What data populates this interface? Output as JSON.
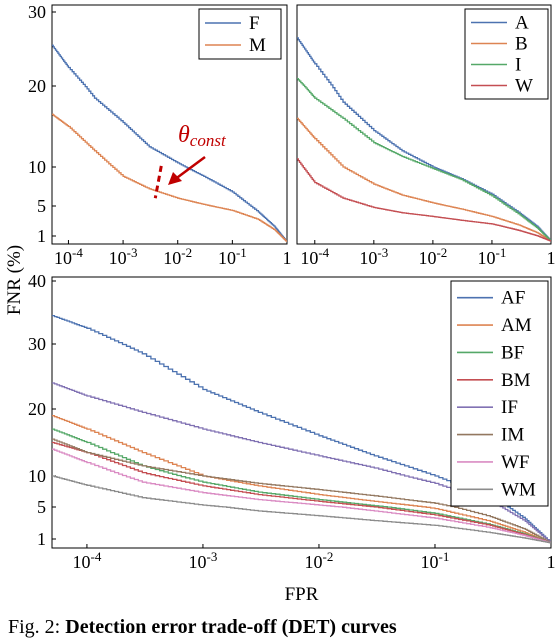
{
  "y_axis_label": "FNR (%)",
  "caption": {
    "prefix": "Fig. 2: ",
    "bold": "Detection error trade-off (DET) curves"
  },
  "colors": {
    "F": "#4c72b0",
    "M": "#dd8452",
    "A": "#4c72b0",
    "B": "#dd8452",
    "I": "#55a868",
    "W": "#c44e52",
    "AF": "#4c72b0",
    "AM": "#dd8452",
    "BF": "#55a868",
    "BM": "#c44e52",
    "IF": "#8172b3",
    "IM": "#937860",
    "WF": "#da8bc3",
    "WM": "#8c8c8c",
    "annotation": "#c00000"
  },
  "chart_data": [
    {
      "type": "line",
      "xscale": "log",
      "xlim": [
        5e-05,
        1
      ],
      "ylim": [
        0,
        30
      ],
      "x_tick_labels": [
        "10-4",
        "10-3",
        "10-2",
        "10-1",
        "1"
      ],
      "y_tick_labels": [
        "1",
        "5",
        "10",
        "20",
        "30"
      ],
      "legend_position": "top-right",
      "annotation": {
        "label": "θconst",
        "x": 0.005
      },
      "series": [
        {
          "name": "F",
          "x": [
            5e-05,
            0.0001,
            0.0003,
            0.001,
            0.003,
            0.01,
            0.03,
            0.1,
            0.3,
            0.6,
            1
          ],
          "y": [
            25.5,
            22.5,
            18.5,
            15.5,
            12.5,
            10.5,
            8.8,
            6.8,
            4.2,
            2.2,
            0.2
          ]
        },
        {
          "name": "M",
          "x": [
            5e-05,
            0.0001,
            0.0003,
            0.001,
            0.003,
            0.01,
            0.03,
            0.1,
            0.3,
            0.6,
            1
          ],
          "y": [
            16.5,
            15.0,
            12.0,
            8.8,
            7.2,
            6.0,
            5.2,
            4.4,
            3.2,
            1.8,
            0.2
          ]
        }
      ]
    },
    {
      "type": "line",
      "xscale": "log",
      "xlim": [
        5e-05,
        1
      ],
      "ylim": [
        0,
        30
      ],
      "x_tick_labels": [
        "10-4",
        "10-3",
        "10-2",
        "10-1",
        "1"
      ],
      "legend_position": "top-right",
      "series": [
        {
          "name": "A",
          "x": [
            5e-05,
            0.0001,
            0.0003,
            0.001,
            0.003,
            0.01,
            0.03,
            0.1,
            0.3,
            0.6,
            1
          ],
          "y": [
            26.5,
            23.0,
            18.0,
            14.5,
            12.0,
            10.0,
            8.5,
            6.5,
            4.0,
            2.2,
            0.3
          ]
        },
        {
          "name": "B",
          "x": [
            5e-05,
            0.0001,
            0.0003,
            0.001,
            0.003,
            0.01,
            0.03,
            0.1,
            0.3,
            0.6,
            1
          ],
          "y": [
            16.0,
            13.5,
            10.0,
            7.8,
            6.4,
            5.4,
            4.6,
            3.6,
            2.4,
            1.4,
            0.3
          ]
        },
        {
          "name": "I",
          "x": [
            5e-05,
            0.0001,
            0.0003,
            0.001,
            0.003,
            0.01,
            0.03,
            0.1,
            0.3,
            0.6,
            1
          ],
          "y": [
            21.0,
            18.5,
            16.0,
            13.0,
            11.3,
            9.8,
            8.4,
            6.3,
            3.8,
            2.0,
            0.3
          ]
        },
        {
          "name": "W",
          "x": [
            5e-05,
            0.0001,
            0.0003,
            0.001,
            0.003,
            0.01,
            0.03,
            0.1,
            0.3,
            0.6,
            1
          ],
          "y": [
            11.0,
            8.0,
            6.0,
            4.8,
            4.1,
            3.6,
            3.1,
            2.6,
            1.7,
            1.0,
            0.3
          ]
        }
      ]
    },
    {
      "type": "line",
      "xscale": "log",
      "xlim": [
        5e-05,
        1
      ],
      "ylim": [
        0,
        40
      ],
      "x_tick_labels": [
        "10-4",
        "10-3",
        "10-2",
        "10-1",
        "1"
      ],
      "y_tick_labels": [
        "1",
        "5",
        "10",
        "20",
        "30",
        "40"
      ],
      "xlabel": "FPR",
      "legend_position": "top-right",
      "series": [
        {
          "name": "AF",
          "x": [
            5e-05,
            0.0001,
            0.0003,
            0.001,
            0.003,
            0.01,
            0.03,
            0.1,
            0.3,
            0.6,
            1
          ],
          "y": [
            34.5,
            32.5,
            28.5,
            23.0,
            19.5,
            16.0,
            13.0,
            10.0,
            6.5,
            3.5,
            0.5
          ]
        },
        {
          "name": "AM",
          "x": [
            5e-05,
            0.0001,
            0.0003,
            0.001,
            0.003,
            0.01,
            0.03,
            0.1,
            0.3,
            0.6,
            1
          ],
          "y": [
            19.0,
            17.0,
            13.5,
            10.0,
            8.4,
            7.0,
            5.9,
            4.8,
            3.2,
            1.8,
            0.5
          ]
        },
        {
          "name": "BF",
          "x": [
            5e-05,
            0.0001,
            0.0003,
            0.001,
            0.003,
            0.01,
            0.03,
            0.1,
            0.3,
            0.6,
            1
          ],
          "y": [
            17.0,
            15.0,
            11.5,
            9.0,
            7.4,
            6.2,
            5.2,
            4.2,
            2.8,
            1.6,
            0.5
          ]
        },
        {
          "name": "BM",
          "x": [
            5e-05,
            0.0001,
            0.0003,
            0.001,
            0.003,
            0.01,
            0.03,
            0.1,
            0.3,
            0.6,
            1
          ],
          "y": [
            15.0,
            13.5,
            10.5,
            8.4,
            7.0,
            5.9,
            5.0,
            4.0,
            2.7,
            1.5,
            0.5
          ]
        },
        {
          "name": "IF",
          "x": [
            5e-05,
            0.0001,
            0.0003,
            0.001,
            0.003,
            0.01,
            0.03,
            0.1,
            0.3,
            0.6,
            1
          ],
          "y": [
            24.0,
            22.0,
            19.5,
            17.0,
            15.0,
            13.0,
            11.2,
            8.8,
            5.8,
            3.2,
            0.5
          ]
        },
        {
          "name": "IM",
          "x": [
            5e-05,
            0.0001,
            0.0003,
            0.001,
            0.003,
            0.01,
            0.03,
            0.1,
            0.3,
            0.6,
            1
          ],
          "y": [
            15.5,
            13.5,
            11.5,
            10.0,
            8.8,
            7.8,
            6.8,
            5.6,
            3.8,
            2.2,
            0.5
          ]
        },
        {
          "name": "WF",
          "x": [
            5e-05,
            0.0001,
            0.0003,
            0.001,
            0.003,
            0.01,
            0.03,
            0.1,
            0.3,
            0.6,
            1
          ],
          "y": [
            14.0,
            12.0,
            9.0,
            7.3,
            6.2,
            5.3,
            4.5,
            3.6,
            2.4,
            1.4,
            0.5
          ]
        },
        {
          "name": "WM",
          "x": [
            5e-05,
            0.0001,
            0.0003,
            0.001,
            0.003,
            0.01,
            0.03,
            0.1,
            0.3,
            0.6,
            1
          ],
          "y": [
            10.0,
            8.5,
            6.5,
            5.3,
            4.5,
            3.9,
            3.3,
            2.7,
            1.8,
            1.1,
            0.5
          ]
        }
      ]
    }
  ]
}
